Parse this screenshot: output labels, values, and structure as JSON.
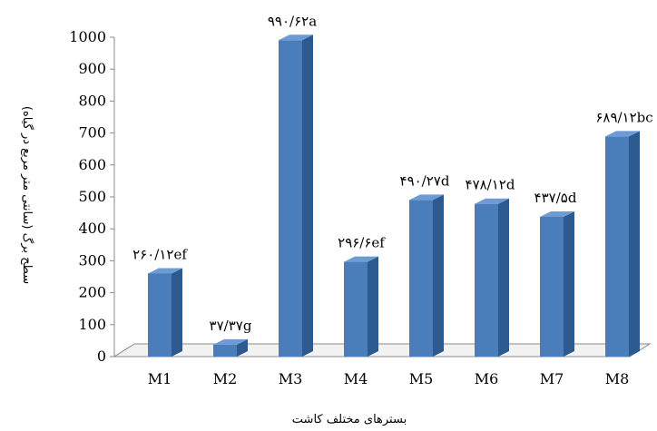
{
  "chart_data": {
    "type": "bar",
    "title": "",
    "xlabel": "بسترهای مختلف کاشت",
    "ylabel": "سطح برگ (سانتی متر مربع در گیاه)",
    "categories": [
      "M1",
      "M2",
      "M3",
      "M4",
      "M5",
      "M6",
      "M7",
      "M8"
    ],
    "values": [
      260.12,
      37.37,
      990.62,
      296.6,
      490.27,
      478.12,
      437.5,
      689.12
    ],
    "data_labels": [
      "۲۶۰/۱۲ef",
      "۳۷/۳۷g",
      "۹۹۰/۶۲a",
      "۲۹۶/۶ef",
      "۴۹۰/۲۷d",
      "۴۷۸/۱۲d",
      "۴۳۷/۵d",
      "۶۸۹/۱۲bc"
    ],
    "yticks": [
      0,
      100,
      200,
      300,
      400,
      500,
      600,
      700,
      800,
      900,
      1000
    ],
    "ylim": [
      0,
      1000
    ],
    "grid": false,
    "legend": "none",
    "colors": {
      "bar_front": "#4a7ebb",
      "bar_side": "#2c5a8e",
      "bar_top": "#6f9bd4",
      "axis": "#8a8a8a"
    }
  }
}
